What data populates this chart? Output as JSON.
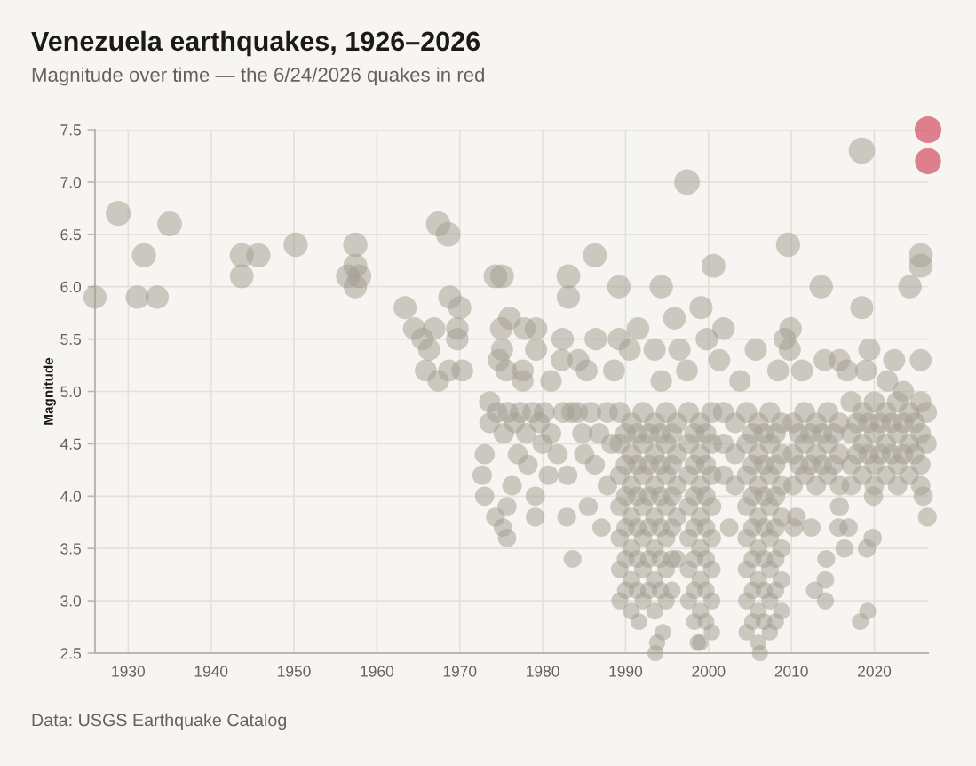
{
  "chart_data": {
    "type": "bubble",
    "title": "Venezuela earthquakes, 1926–2026",
    "subtitle": "Magnitude over time — the 6/24/2026 quakes in red",
    "ylabel": "Magnitude",
    "annotations": [
      "Data: USGS Earthquake Catalog"
    ],
    "xlim": [
      1926,
      2026.48
    ],
    "ylim": [
      2.5,
      7.5
    ],
    "xticks": [
      1930,
      1940,
      1950,
      1960,
      1970,
      1980,
      1990,
      2000,
      2010,
      2020
    ],
    "yticks": [
      2.5,
      {
        "value": 3,
        "label": "3.0"
      },
      3.5,
      {
        "value": 4,
        "label": "4.0"
      },
      4.5,
      {
        "value": 5,
        "label": "5.0"
      },
      5.5,
      {
        "value": 6,
        "label": "6.0"
      },
      6.5,
      {
        "value": 7,
        "label": "7.0"
      },
      7.5
    ],
    "grid": true,
    "series": [
      {
        "color": "#a29b8f",
        "x": [
          1926.0,
          1928.8,
          1931.1,
          1931.9,
          1933.5,
          1935.0,
          1943.7,
          1943.7,
          1945.7,
          1950.2,
          1957.4,
          1957.4,
          1956.5,
          1957.4,
          1957.9,
          1963.4,
          1964.5,
          1965.5,
          1966.3,
          1966.9,
          1967.4,
          1968.6,
          1968.8,
          1970.0,
          1969.7,
          1969.7,
          1965.9,
          1967.4,
          1968.7,
          1970.3,
          1974.3,
          1975.1,
          1976.0,
          1975.0,
          1977.8,
          1979.2,
          1975.1,
          1979.2,
          1974.7,
          1975.6,
          1977.6,
          1977.6,
          1982.4,
          1982.3,
          1984.3,
          1983.1,
          1983.1,
          1986.3,
          1986.4,
          1989.2,
          1989.2,
          1991.5,
          1994.3,
          1994.3,
          1995.9,
          1997.4,
          1997.4,
          1999.1,
          1999.8,
          2000.6,
          2001.8,
          2001.3,
          2005.7,
          2009.6,
          2009.9,
          2009.2,
          2009.8,
          2013.6,
          2014.0,
          2015.8,
          2018.5,
          2018.5,
          2019.4,
          2022.4,
          2024.3,
          2025.6,
          2025.6,
          2025.6,
          1981.0,
          1985.3,
          1988.6,
          1990.5,
          1993.5,
          1996.5,
          2003.8,
          2008.4,
          2011.3,
          2016.7,
          2019.0,
          2021.6,
          2023.5,
          1972.7,
          1973.0,
          1973.0,
          1973.6,
          1973.6,
          1974.5,
          1975.3,
          1975.8,
          1976.6,
          1977.3,
          1978.0,
          1978.8,
          1979.6,
          1974.3,
          1975.2,
          1975.7,
          1975.7,
          1976.3,
          1978.2,
          1979.1,
          1979.1,
          1980.7,
          1981.8,
          1982.5,
          1983.0,
          1982.9,
          1983.6,
          1984.8,
          1985.5,
          1986.3,
          1987.1,
          1980.2,
          1981.0,
          1983.5,
          1984.2,
          1985.8,
          1986.8,
          1987.8,
          1988.3,
          1985.0,
          1987.8,
          1977.0,
          1980.0,
          1989.3,
          1989.3,
          1989.3,
          1989.3,
          1989.3,
          1989.3,
          1989.3,
          1990.7,
          1990.7,
          1990.7,
          1990.7,
          1990.7,
          1990.7,
          1990.7,
          1992.1,
          1992.1,
          1992.1,
          1992.1,
          1992.1,
          1992.1,
          1992.1,
          1993.5,
          1993.5,
          1993.5,
          1993.5,
          1993.5,
          1993.5,
          1993.5,
          1994.9,
          1994.9,
          1994.9,
          1994.9,
          1994.9,
          1994.9,
          1994.9,
          1996.2,
          1996.2,
          1996.2,
          1996.2,
          1996.2,
          1997.6,
          1997.6,
          1997.6,
          1997.6,
          1997.6,
          1997.6,
          1997.6,
          1999.0,
          1999.0,
          1999.0,
          1999.0,
          1999.0,
          1999.0,
          1999.0,
          1999.0,
          2000.4,
          2000.4,
          2000.4,
          2000.4,
          2000.4,
          2000.4,
          2000.4,
          2000.4,
          2001.8,
          2001.8,
          2001.8,
          2003.2,
          2003.2,
          2003.2,
          2004.6,
          2004.6,
          2004.6,
          2004.6,
          2004.6,
          2004.6,
          2004.6,
          2004.6,
          2006.0,
          2006.0,
          2006.0,
          2006.0,
          2006.0,
          2006.0,
          2006.0,
          2006.0,
          2007.4,
          2007.4,
          2007.4,
          2007.4,
          2007.4,
          2007.4,
          2007.4,
          2007.4,
          2008.8,
          2008.8,
          2008.8,
          2008.8,
          2008.8,
          2008.8,
          2008.8,
          2010.2,
          2010.2,
          2010.2,
          2011.6,
          2011.6,
          2011.6,
          2013.0,
          2013.0,
          2013.0,
          2014.4,
          2014.4,
          2014.4,
          2015.8,
          2015.8,
          2015.8,
          2015.8,
          2017.2,
          2017.2,
          2017.2,
          2017.2,
          2018.6,
          2018.6,
          2018.6,
          2020.0,
          2020.0,
          2020.0,
          2020.0,
          2021.4,
          2021.4,
          2021.4,
          2022.8,
          2022.8,
          2022.8,
          2022.8,
          2024.2,
          2024.2,
          2024.2,
          2025.6,
          2025.6,
          2025.6,
          2025.6,
          2026.3,
          2026.3,
          2026.4,
          2025.9,
          2019.8,
          2019.1,
          2018.3,
          2019.2,
          2014.2,
          2014.1,
          2012.8,
          2014.1,
          2016.4,
          2015.7,
          2016.9,
          2010.3,
          2012.4,
          2002.5,
          2010.6,
          1993.6,
          1993.8,
          1994.5,
          1991.6,
          1998.7,
          2006.2,
          2019.9,
          1990.0,
          1990.0,
          1990.0,
          1990.0,
          1990.0,
          1990.0,
          1991.4,
          1991.4,
          1991.4,
          1991.4,
          1991.4,
          1991.4,
          1992.8,
          1992.8,
          1992.8,
          1992.8,
          1992.8,
          1992.8,
          1994.2,
          1994.2,
          1994.2,
          1994.2,
          1994.2,
          1994.2,
          1995.6,
          1995.6,
          1995.6,
          1995.6,
          1995.6,
          1995.6,
          1998.3,
          1998.3,
          1998.3,
          1998.3,
          1998.3,
          1998.3,
          1998.3,
          1999.7,
          1999.7,
          1999.7,
          1999.7,
          1999.7,
          1999.7,
          1999.7,
          2005.3,
          2005.3,
          2005.3,
          2005.3,
          2005.3,
          2005.3,
          2005.3,
          2006.7,
          2006.7,
          2006.7,
          2006.7,
          2006.7,
          2006.7,
          2006.7,
          2008.1,
          2008.1,
          2008.1,
          2008.1,
          2008.1,
          2008.1,
          2008.1,
          2010.9,
          2010.9,
          2012.3,
          2012.3,
          2013.7,
          2013.7,
          2015.1,
          2015.1,
          2017.9,
          2017.9,
          2019.3,
          2019.3,
          2020.7,
          2020.7,
          2022.1,
          2022.1,
          2023.5,
          2023.5,
          2024.9,
          2024.9
        ],
        "values": [
          5.9,
          6.7,
          5.9,
          6.3,
          5.9,
          6.6,
          6.3,
          6.1,
          6.3,
          6.4,
          6.4,
          6.2,
          6.1,
          6.0,
          6.1,
          5.8,
          5.6,
          5.5,
          5.4,
          5.6,
          6.6,
          6.5,
          5.9,
          5.8,
          5.6,
          5.5,
          5.2,
          5.1,
          5.2,
          5.2,
          6.1,
          6.1,
          5.7,
          5.6,
          5.6,
          5.6,
          5.4,
          5.4,
          5.3,
          5.2,
          5.2,
          5.1,
          5.5,
          5.3,
          5.3,
          6.1,
          5.9,
          6.3,
          5.5,
          6.0,
          5.5,
          5.6,
          6.0,
          5.1,
          5.7,
          7.0,
          5.2,
          5.8,
          5.5,
          6.2,
          5.6,
          5.3,
          5.4,
          6.4,
          5.6,
          5.5,
          5.4,
          6.0,
          5.3,
          5.3,
          7.3,
          5.8,
          5.4,
          5.3,
          6.0,
          6.3,
          6.2,
          5.3,
          5.1,
          5.2,
          5.2,
          5.4,
          5.4,
          5.4,
          5.1,
          5.2,
          5.2,
          5.2,
          5.2,
          5.1,
          5.0,
          4.2,
          4.0,
          4.4,
          4.7,
          4.9,
          4.8,
          4.6,
          4.8,
          4.7,
          4.8,
          4.6,
          4.8,
          4.7,
          3.8,
          3.7,
          3.6,
          3.9,
          4.1,
          4.3,
          4.0,
          3.8,
          4.2,
          4.4,
          4.8,
          4.2,
          3.8,
          3.4,
          4.6,
          3.9,
          4.3,
          3.7,
          4.8,
          4.6,
          4.8,
          4.8,
          4.8,
          4.6,
          4.8,
          4.5,
          4.4,
          4.1,
          4.4,
          4.5,
          4.8,
          4.5,
          4.2,
          3.9,
          3.6,
          3.3,
          3.0,
          4.7,
          4.4,
          4.1,
          3.8,
          3.5,
          3.2,
          2.9,
          4.8,
          4.5,
          4.2,
          3.9,
          3.6,
          3.3,
          3.0,
          4.7,
          4.4,
          4.1,
          3.8,
          3.5,
          3.2,
          2.9,
          4.8,
          4.5,
          4.2,
          3.9,
          3.6,
          3.3,
          3.0,
          4.7,
          4.4,
          4.1,
          3.8,
          3.4,
          4.8,
          4.5,
          4.2,
          3.9,
          3.6,
          3.3,
          3.0,
          4.7,
          4.4,
          4.1,
          3.8,
          3.5,
          3.2,
          2.9,
          2.6,
          4.8,
          4.5,
          4.2,
          3.9,
          3.6,
          3.3,
          3.0,
          2.7,
          4.8,
          4.5,
          4.2,
          4.7,
          4.4,
          4.1,
          4.8,
          4.5,
          4.2,
          3.9,
          3.6,
          3.3,
          3.0,
          2.7,
          4.7,
          4.4,
          4.1,
          3.8,
          3.5,
          3.2,
          2.9,
          2.6,
          4.8,
          4.5,
          4.2,
          3.9,
          3.6,
          3.3,
          3.0,
          2.7,
          4.7,
          4.4,
          4.1,
          3.8,
          3.5,
          3.2,
          2.9,
          4.7,
          4.4,
          4.1,
          4.8,
          4.5,
          4.2,
          4.7,
          4.4,
          4.1,
          4.8,
          4.5,
          4.2,
          4.7,
          4.4,
          4.1,
          3.9,
          4.9,
          4.6,
          4.3,
          4.1,
          4.8,
          4.5,
          4.2,
          4.9,
          4.6,
          4.3,
          4.1,
          4.8,
          4.5,
          4.2,
          4.9,
          4.6,
          4.3,
          4.1,
          4.8,
          4.5,
          4.2,
          4.9,
          4.6,
          4.3,
          4.1,
          4.8,
          4.5,
          3.8,
          4.0,
          3.6,
          3.5,
          2.8,
          2.9,
          3.4,
          3.2,
          3.1,
          3.0,
          3.5,
          3.7,
          3.7,
          3.7,
          3.7,
          3.7,
          3.8,
          2.5,
          2.6,
          2.7,
          2.8,
          2.6,
          2.5,
          4.0,
          4.6,
          4.3,
          4.0,
          3.7,
          3.4,
          3.1,
          4.6,
          4.3,
          4.0,
          3.7,
          3.4,
          3.1,
          4.6,
          4.3,
          4.0,
          3.7,
          3.4,
          3.1,
          4.6,
          4.3,
          4.0,
          3.7,
          3.4,
          3.1,
          4.6,
          4.3,
          4.0,
          3.7,
          3.4,
          3.1,
          4.6,
          4.3,
          4.0,
          3.7,
          3.4,
          3.1,
          2.8,
          4.6,
          4.3,
          4.0,
          3.7,
          3.4,
          3.1,
          2.8,
          4.6,
          4.3,
          4.0,
          3.7,
          3.4,
          3.1,
          2.8,
          4.6,
          4.3,
          4.0,
          3.7,
          3.4,
          3.1,
          2.8,
          4.6,
          4.3,
          4.0,
          3.7,
          3.4,
          3.1,
          2.8,
          4.6,
          4.3,
          4.6,
          4.3,
          4.6,
          4.3,
          4.6,
          4.3,
          4.7,
          4.4,
          4.7,
          4.4,
          4.7,
          4.4,
          4.7,
          4.4,
          4.7,
          4.4,
          4.7,
          4.4
        ],
        "sizes": [
          0.76,
          0.88,
          0.76,
          0.82,
          0.76,
          0.86,
          0.82,
          0.79,
          0.82,
          0.83,
          0.83,
          0.8,
          0.79,
          0.77,
          0.79,
          0.75,
          0.72,
          0.71,
          0.69,
          0.72,
          0.86,
          0.85,
          0.76,
          0.75,
          0.72,
          0.71,
          0.67,
          0.65,
          0.67,
          0.67,
          0.79,
          0.79,
          0.73,
          0.72,
          0.72,
          0.72,
          0.69,
          0.69,
          0.68,
          0.67,
          0.67,
          0.65,
          0.71,
          0.68,
          0.68,
          0.79,
          0.76,
          0.82,
          0.71,
          0.77,
          0.71,
          0.72,
          0.77,
          0.65,
          0.73,
          0.92,
          0.67,
          0.75,
          0.71,
          0.8,
          0.72,
          0.68,
          0.69,
          0.83,
          0.72,
          0.71,
          0.69,
          0.77,
          0.68,
          0.68,
          0.97,
          0.75,
          0.69,
          0.68,
          0.77,
          0.82,
          0.8,
          0.68,
          0.65,
          0.67,
          0.67,
          0.69,
          0.69,
          0.69,
          0.65,
          0.67,
          0.67,
          0.67,
          0.67,
          0.65,
          0.64,
          0.54,
          0.52,
          0.57,
          0.6,
          0.63,
          0.62,
          0.59,
          0.62,
          0.6,
          0.62,
          0.59,
          0.62,
          0.6,
          0.5,
          0.48,
          0.47,
          0.51,
          0.53,
          0.55,
          0.52,
          0.5,
          0.54,
          0.57,
          0.62,
          0.54,
          0.5,
          0.45,
          0.59,
          0.51,
          0.55,
          0.48,
          0.62,
          0.59,
          0.62,
          0.62,
          0.62,
          0.59,
          0.62,
          0.58,
          0.57,
          0.53,
          0.57,
          0.58,
          0.62,
          0.58,
          0.54,
          0.51,
          0.47,
          0.44,
          0.41,
          0.6,
          0.57,
          0.53,
          0.5,
          0.46,
          0.43,
          0.4,
          0.62,
          0.58,
          0.54,
          0.51,
          0.47,
          0.44,
          0.41,
          0.6,
          0.57,
          0.53,
          0.5,
          0.46,
          0.43,
          0.4,
          0.62,
          0.58,
          0.54,
          0.51,
          0.47,
          0.44,
          0.41,
          0.6,
          0.57,
          0.53,
          0.5,
          0.45,
          0.62,
          0.58,
          0.54,
          0.51,
          0.47,
          0.44,
          0.41,
          0.6,
          0.57,
          0.53,
          0.5,
          0.46,
          0.43,
          0.4,
          0.37,
          0.62,
          0.58,
          0.54,
          0.51,
          0.47,
          0.44,
          0.41,
          0.38,
          0.62,
          0.58,
          0.54,
          0.6,
          0.57,
          0.53,
          0.62,
          0.58,
          0.54,
          0.51,
          0.47,
          0.44,
          0.41,
          0.38,
          0.6,
          0.57,
          0.53,
          0.5,
          0.46,
          0.43,
          0.4,
          0.37,
          0.62,
          0.58,
          0.54,
          0.51,
          0.47,
          0.44,
          0.41,
          0.38,
          0.6,
          0.57,
          0.53,
          0.5,
          0.46,
          0.43,
          0.4,
          0.6,
          0.57,
          0.53,
          0.62,
          0.58,
          0.54,
          0.6,
          0.57,
          0.53,
          0.62,
          0.58,
          0.54,
          0.6,
          0.57,
          0.53,
          0.51,
          0.63,
          0.59,
          0.55,
          0.53,
          0.62,
          0.58,
          0.54,
          0.63,
          0.59,
          0.55,
          0.53,
          0.62,
          0.58,
          0.54,
          0.63,
          0.59,
          0.55,
          0.53,
          0.62,
          0.58,
          0.54,
          0.63,
          0.59,
          0.55,
          0.53,
          0.62,
          0.58,
          0.5,
          0.52,
          0.47,
          0.46,
          0.39,
          0.4,
          0.45,
          0.43,
          0.42,
          0.41,
          0.46,
          0.48,
          0.48,
          0.48,
          0.48,
          0.48,
          0.5,
          0.36,
          0.37,
          0.38,
          0.39,
          0.37,
          0.36,
          0.52,
          0.59,
          0.55,
          0.52,
          0.48,
          0.45,
          0.42,
          0.59,
          0.55,
          0.52,
          0.48,
          0.45,
          0.42,
          0.59,
          0.55,
          0.52,
          0.48,
          0.45,
          0.42,
          0.59,
          0.55,
          0.52,
          0.48,
          0.45,
          0.42,
          0.59,
          0.55,
          0.52,
          0.48,
          0.45,
          0.42,
          0.59,
          0.55,
          0.52,
          0.48,
          0.45,
          0.42,
          0.39,
          0.59,
          0.55,
          0.52,
          0.48,
          0.45,
          0.42,
          0.39,
          0.59,
          0.55,
          0.52,
          0.48,
          0.45,
          0.42,
          0.39,
          0.59,
          0.55,
          0.52,
          0.48,
          0.45,
          0.42,
          0.39,
          0.59,
          0.55,
          0.52,
          0.48,
          0.45,
          0.42,
          0.39,
          0.59,
          0.55,
          0.59,
          0.55,
          0.59,
          0.55,
          0.59,
          0.55,
          0.6,
          0.57,
          0.6,
          0.57,
          0.6,
          0.57,
          0.6,
          0.57,
          0.6,
          0.57,
          0.6,
          0.57
        ]
      },
      {
        "color": "#c40927",
        "x": [
          2026.48,
          2026.48
        ],
        "values": [
          7.5,
          7.2
        ],
        "sizes": [
          1.0,
          0.95
        ]
      }
    ]
  }
}
